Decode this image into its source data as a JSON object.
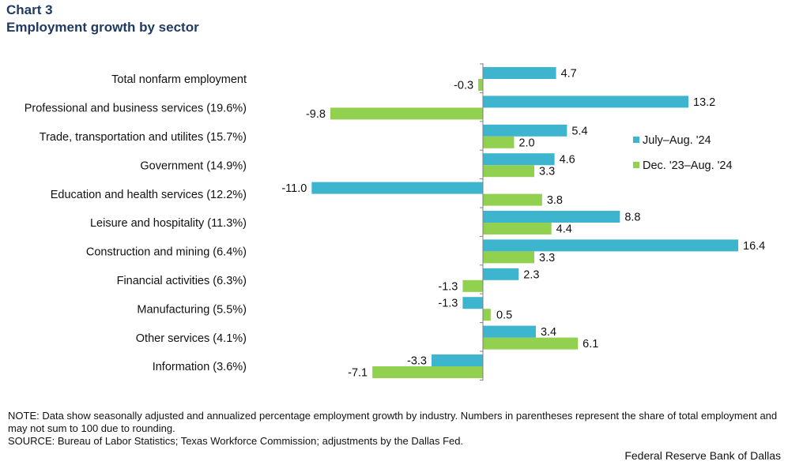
{
  "header": {
    "label": "Chart 3",
    "title": "Employment growth by sector"
  },
  "chart_data": {
    "type": "bar",
    "orientation": "horizontal",
    "title": "Employment growth by sector",
    "xlabel": "",
    "ylabel": "",
    "xlim": [
      -11.0,
      16.4
    ],
    "grid": false,
    "legend_position": "right",
    "categories": [
      "Total nonfarm employment",
      "Professional and business services (19.6%)",
      "Trade, transportation and utilites (15.7%)",
      "Government  (14.9%)",
      "Education and health services (12.2%)",
      "Leisure and hospitality (11.3%)",
      "Construction and mining (6.4%)",
      "Financial activities  (6.3%)",
      "Manufacturing  (5.5%)",
      "Other services  (4.1%)",
      "Information  (3.6%)"
    ],
    "series": [
      {
        "name": "July–Aug.  '24",
        "color": "#3db5cf",
        "values": [
          4.7,
          13.2,
          5.4,
          4.6,
          -11.0,
          8.8,
          16.4,
          2.3,
          -1.3,
          3.4,
          -3.3
        ]
      },
      {
        "name": "Dec. '23–Aug. '24",
        "color": "#92d050",
        "values": [
          -0.3,
          -9.8,
          2.0,
          3.3,
          3.8,
          4.4,
          3.3,
          -1.3,
          0.5,
          6.1,
          -7.1
        ]
      }
    ]
  },
  "footer": {
    "note": "NOTE: Data show seasonally adjusted and annualized percentage employment growth by industry. Numbers in parentheses represent the share of total employment and may not sum to 100 due to rounding.",
    "source": "SOURCE: Bureau of Labor Statistics; Texas Workforce Commission; adjustments by the Dallas Fed.",
    "credit": "Federal Reserve Bank of Dallas"
  }
}
